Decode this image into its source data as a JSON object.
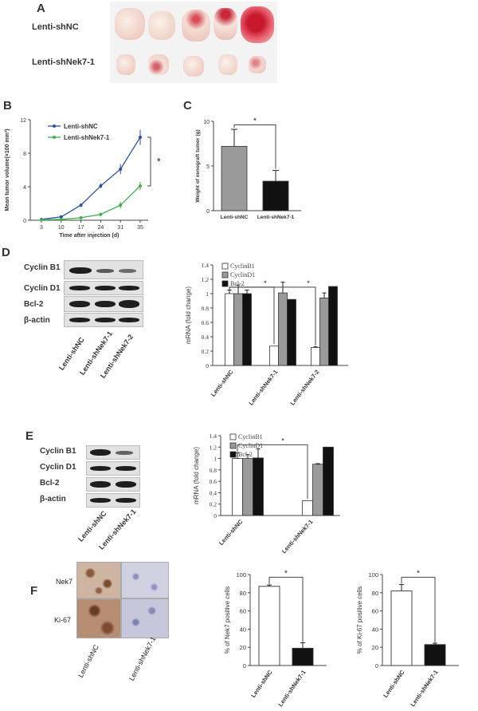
{
  "panels": {
    "a": "A",
    "b": "B",
    "c": "C",
    "d": "D",
    "e": "E",
    "f": "F"
  },
  "panel_a": {
    "rows": [
      "Lenti-shNC",
      "Lenti-shNek7-1"
    ]
  },
  "colors": {
    "blue": "#2c4fa3",
    "green": "#3db24a",
    "grey": "#9a9a9a",
    "black": "#111111"
  },
  "chart_data": [
    {
      "id": "B",
      "type": "line",
      "x": [
        3,
        10,
        17,
        24,
        31,
        35
      ],
      "series": [
        {
          "name": "Lenti-shNC",
          "values": [
            0.1,
            0.4,
            1.8,
            4.1,
            6.1,
            9.9
          ],
          "errors": [
            0.05,
            0.1,
            0.2,
            0.3,
            0.6,
            0.9
          ]
        },
        {
          "name": "Lenti-shNek7-1",
          "values": [
            0.05,
            0.1,
            0.3,
            0.7,
            1.8,
            4.1
          ],
          "errors": [
            0.02,
            0.05,
            0.1,
            0.2,
            0.4,
            0.5
          ]
        }
      ],
      "xlabel": "Time after injection (d)",
      "ylabel": "Mean tumor volume(×100 mm³)",
      "ylim": [
        0,
        12
      ],
      "yticks": [
        "0",
        "4",
        "8",
        "12"
      ],
      "annotation": "*"
    },
    {
      "id": "C",
      "type": "bar",
      "categories": [
        "Lenti-shNC",
        "Lenti-shNek7-1"
      ],
      "values": [
        7.2,
        3.3
      ],
      "errors": [
        1.9,
        1.2
      ],
      "ylabel": "Weight of xenograft tumor (g)",
      "ylim": [
        0,
        10
      ],
      "yticks": [
        "0",
        "5",
        "10"
      ],
      "annotation": "*"
    },
    {
      "id": "D",
      "type": "bar",
      "categories": [
        "Lenti-shNC",
        "Lenti-shNek7-1",
        "Lenti-shNek7-2"
      ],
      "series": [
        {
          "name": "CyclinB1",
          "values": [
            1.0,
            0.27,
            0.25
          ],
          "errors": [
            0.05,
            0,
            0.01
          ]
        },
        {
          "name": "CyclinD1",
          "values": [
            1.0,
            1.01,
            0.94
          ],
          "errors": [
            0.12,
            0.15,
            0.07
          ]
        },
        {
          "name": "Bcl-2",
          "values": [
            1.0,
            0.92,
            1.1
          ],
          "errors": [
            0.05,
            0,
            0
          ]
        }
      ],
      "ylabel": "mRNA (fold change)",
      "ylim": [
        0,
        1.4
      ],
      "yticks": [
        "0",
        "0.2",
        "0.4",
        "0.6",
        "0.8",
        "1",
        "1.2",
        "1.4"
      ],
      "annotation": "*"
    },
    {
      "id": "E",
      "type": "bar",
      "categories": [
        "Lenti-shNC",
        "Lenti-shNek7-1"
      ],
      "series": [
        {
          "name": "CyclinB1",
          "values": [
            1.0,
            0.26
          ],
          "errors": [
            0.1,
            0
          ]
        },
        {
          "name": "CyclinD1",
          "values": [
            1.0,
            0.9
          ],
          "errors": [
            0.07,
            0.01
          ]
        },
        {
          "name": "Bcl-2",
          "values": [
            1.01,
            1.2
          ],
          "errors": [
            0.16,
            0
          ]
        }
      ],
      "ylabel": "mRNA (fold change)",
      "ylim": [
        0,
        1.4
      ],
      "yticks": [
        "0",
        "0.2",
        "0.4",
        "0.6",
        "0.8",
        "1",
        "1.2",
        "1.4"
      ],
      "annotation": "*"
    },
    {
      "id": "F1",
      "type": "bar",
      "categories": [
        "Lenti-shNC",
        "Lenti-shNek7-1"
      ],
      "values": [
        87,
        19
      ],
      "errors": [
        1.5,
        6
      ],
      "ylabel": "% of Nek7 positive cells",
      "ylim": [
        0,
        100
      ],
      "yticks": [
        "0",
        "20",
        "40",
        "60",
        "80",
        "100"
      ],
      "annotation": "*"
    },
    {
      "id": "F2",
      "type": "bar",
      "categories": [
        "Lenti-shNC",
        "Lenti-shNek7-1"
      ],
      "values": [
        82,
        23
      ],
      "errors": [
        7,
        1.5
      ],
      "ylabel": "% of Ki-67 positive cells",
      "ylim": [
        0,
        100
      ],
      "yticks": [
        "0",
        "20",
        "40",
        "60",
        "80",
        "100"
      ],
      "annotation": "*"
    }
  ],
  "blots": {
    "d": {
      "rows": [
        "Cyclin B1",
        "Cyclin D1",
        "Bcl-2",
        "β-actin"
      ],
      "lanes": [
        "Lenti-shNC",
        "Lenti-shNek7-1",
        "Lenti-shNek7-2"
      ]
    },
    "e": {
      "rows": [
        "Cyclin B1",
        "Cyclin D1",
        "Bcl-2",
        "β-actin"
      ],
      "lanes": [
        "Lenti-shNC",
        "Lenti-shNek7-1"
      ]
    }
  },
  "ihc": {
    "rows": [
      "Nek7",
      "Ki-67"
    ],
    "cols": [
      "Lenti-shNC",
      "Lenti-shNek7-1"
    ]
  }
}
